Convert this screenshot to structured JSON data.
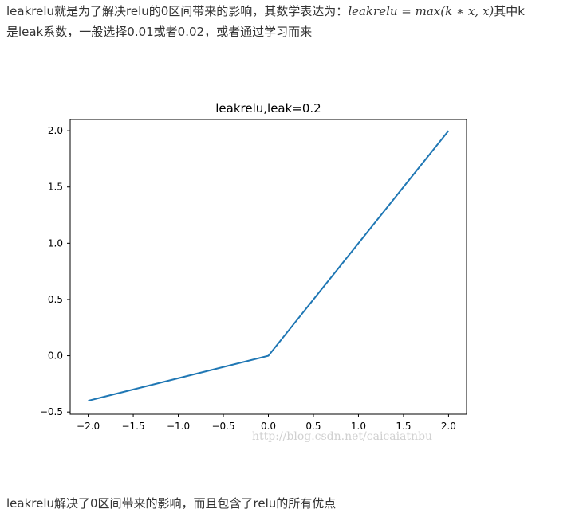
{
  "text": {
    "intro_before": "leakrelu就是为了解决relu的0区间带来的影响，其数学表达为：",
    "formula": "leakrelu = max(k ∗ x, x)",
    "intro_after_line1": "其中k",
    "intro_line2": "是leak系数，一般选择0.01或者0.02，或者通过学习而来",
    "conclusion": "leakrelu解决了0区间带来的影响，而且包含了relu的所有优点",
    "watermark": "http://blog.csdn.net/caicaiatnbu"
  },
  "chart_data": {
    "type": "line",
    "title": "leakrelu,leak=0.2",
    "xlabel": "",
    "ylabel": "",
    "xlim": [
      -2.2,
      2.2
    ],
    "ylim": [
      -0.52,
      2.1
    ],
    "x_ticks": [
      -2.0,
      -1.5,
      -1.0,
      -0.5,
      0.0,
      0.5,
      1.0,
      1.5,
      2.0
    ],
    "x_tick_labels": [
      "−2.0",
      "−1.5",
      "−1.0",
      "−0.5",
      "0.0",
      "0.5",
      "1.0",
      "1.5",
      "2.0"
    ],
    "y_ticks": [
      -0.5,
      0.0,
      0.5,
      1.0,
      1.5,
      2.0
    ],
    "y_tick_labels": [
      "−0.5",
      "0.0",
      "0.5",
      "1.0",
      "1.5",
      "2.0"
    ],
    "grid": false,
    "series": [
      {
        "color": "#1f77b4",
        "x": [
          -2.0,
          0.0,
          2.0
        ],
        "y": [
          -0.4,
          0.0,
          2.0
        ]
      }
    ]
  }
}
